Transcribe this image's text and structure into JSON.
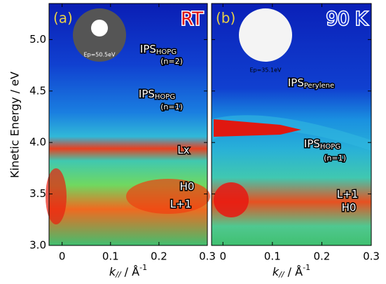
{
  "chart_data": [
    {
      "type": "heatmap",
      "panel_label": "(a)",
      "condition": "RT",
      "inset_label": "Ep=50.5eV",
      "y_label": "Kinetic Energy / eV",
      "x_label": {
        "k": "k",
        "sub": "//",
        "unit": " / Å",
        "sup": "-1"
      },
      "xlim": [
        -0.027,
        0.3
      ],
      "xticks": [
        0,
        0.1,
        0.2,
        0.3
      ],
      "ylim": [
        3.0,
        5.35
      ],
      "yticks": [
        {
          "value": 3.0,
          "label": "3.0"
        },
        {
          "value": 3.5,
          "label": "3.5"
        },
        {
          "value": 4.0,
          "label": "4.0"
        },
        {
          "value": 4.5,
          "label": "4.5"
        },
        {
          "value": 5.0,
          "label": "5.0"
        }
      ],
      "annotations": [
        {
          "text": "IPS",
          "sub": "HOPG"
        },
        {
          "text": "(n=2)"
        },
        {
          "text": "IPS",
          "sub": "HOPG"
        },
        {
          "text": "(n=1)"
        },
        {
          "text": "Lx"
        },
        {
          "text": "H0"
        },
        {
          "text": "L+1"
        }
      ]
    },
    {
      "type": "heatmap",
      "panel_label": "(b)",
      "condition": "90 K",
      "inset_label": "Ep=35.1eV",
      "x_label": {
        "k": "k",
        "sub": "//",
        "unit": " / Å",
        "sup": "-1"
      },
      "xlim": [
        -0.023,
        0.3
      ],
      "xticks": [
        0,
        0.1,
        0.2,
        0.3
      ],
      "annotations": [
        {
          "text": "IPS",
          "sub": "Perylene"
        },
        {
          "text": "IPS",
          "sub": "HOPG"
        },
        {
          "text": "(n=1)"
        },
        {
          "text": "L+1"
        },
        {
          "text": "H0"
        }
      ]
    }
  ]
}
